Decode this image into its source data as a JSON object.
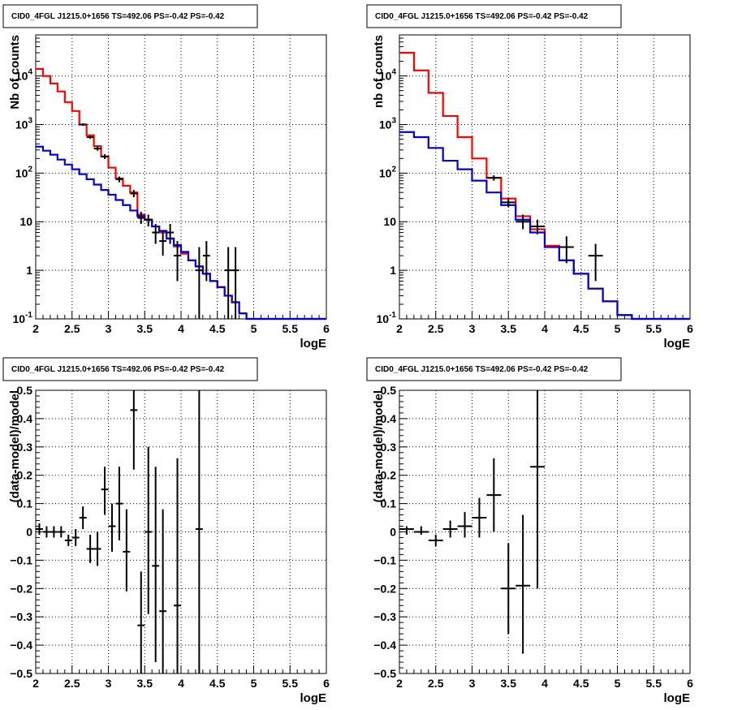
{
  "chart_data": [
    {
      "type": "line",
      "title": "CID0_4FGL J1215.0+1656 TS=492.06 PS=-0.42 PS=-0.42",
      "xlabel": "logE",
      "ylabel": "Nb of counts",
      "xlim": [
        2,
        6
      ],
      "ylim": [
        0.1,
        70000
      ],
      "yscale": "log",
      "xticks": [
        "2",
        "2.5",
        "3",
        "3.5",
        "4",
        "4.5",
        "5",
        "5.5",
        "6"
      ],
      "yticks": [
        {
          "value": 0.1,
          "label": "10⁻¹"
        },
        {
          "value": 1,
          "label": "1"
        },
        {
          "value": 10,
          "label": "10"
        },
        {
          "value": 100,
          "label": "10²"
        },
        {
          "value": 1000,
          "label": "10³"
        },
        {
          "value": 10000,
          "label": "10⁴"
        }
      ],
      "grid": true,
      "bin_edges": [
        2.0,
        2.1,
        2.2,
        2.3,
        2.4,
        2.5,
        2.6,
        2.7,
        2.8,
        2.9,
        3.0,
        3.1,
        3.2,
        3.3,
        3.4,
        3.5,
        3.6,
        3.7,
        3.8,
        3.9,
        4.0,
        4.1,
        4.2,
        4.3,
        4.4,
        4.5,
        4.6,
        4.7,
        4.8,
        4.9,
        5.0,
        5.1,
        5.2,
        5.3,
        5.4,
        5.5,
        5.6,
        5.7,
        5.8,
        5.9,
        6.0
      ],
      "series": [
        {
          "color": "#ff0000",
          "style": "step",
          "values": [
            14000,
            10000,
            7000,
            4800,
            2900,
            1900,
            1000,
            600,
            360,
            220,
            130,
            78,
            55,
            40,
            14,
            11,
            8,
            6,
            4.5,
            3.1,
            2.2,
            1.6,
            1.2,
            0.85,
            0.6,
            0.45,
            0.3,
            0.22,
            0.13,
            0.1,
            0.1,
            0.1,
            0.1,
            0.1,
            0.1,
            0.1,
            0.1,
            0.1,
            0.1,
            0.1
          ]
        },
        {
          "color": "#0000dd",
          "style": "step",
          "values": [
            350,
            290,
            240,
            190,
            150,
            120,
            95,
            75,
            58,
            45,
            36,
            28,
            22,
            17,
            13,
            11,
            8,
            6.5,
            4.5,
            3.3,
            2.4,
            1.6,
            1.2,
            0.85,
            0.6,
            0.45,
            0.3,
            0.22,
            0.13,
            0.1,
            0.1,
            0.1,
            0.1,
            0.1,
            0.1,
            0.1,
            0.1,
            0.1,
            0.1,
            0.1
          ]
        },
        {
          "color": "#000000",
          "style": "errorbar",
          "points": [
            {
              "x": 2.65,
              "y": 1000,
              "lo": 940,
              "hi": 1060
            },
            {
              "x": 2.75,
              "y": 550,
              "lo": 505,
              "hi": 595
            },
            {
              "x": 2.85,
              "y": 320,
              "lo": 290,
              "hi": 355
            },
            {
              "x": 2.95,
              "y": 220,
              "lo": 195,
              "hi": 245
            },
            {
              "x": 3.15,
              "y": 75,
              "lo": 65,
              "hi": 85
            },
            {
              "x": 3.35,
              "y": 38,
              "lo": 32,
              "hi": 45
            },
            {
              "x": 3.45,
              "y": 12,
              "lo": 9,
              "hi": 16
            },
            {
              "x": 3.55,
              "y": 11,
              "lo": 8,
              "hi": 14
            },
            {
              "x": 3.65,
              "y": 6,
              "lo": 3.5,
              "hi": 9
            },
            {
              "x": 3.75,
              "y": 4,
              "lo": 2,
              "hi": 6.5
            },
            {
              "x": 3.85,
              "y": 6,
              "lo": 3.5,
              "hi": 9
            },
            {
              "x": 3.95,
              "y": 2,
              "lo": 0.6,
              "hi": 4
            },
            {
              "x": 4.25,
              "y": 1,
              "lo": 0.1,
              "hi": 3
            },
            {
              "x": 4.35,
              "y": 2,
              "lo": 0.6,
              "hi": 4
            },
            {
              "x": 4.65,
              "y": 1,
              "lo": 0.1,
              "hi": 3
            },
            {
              "x": 4.75,
              "y": 1,
              "lo": 0.1,
              "hi": 3
            }
          ]
        }
      ]
    },
    {
      "type": "line",
      "title": "CID0_4FGL J1215.0+1656 TS=492.06 PS=-0.42 PS=-0.42",
      "xlabel": "logE",
      "ylabel": "nb of counts",
      "xlim": [
        2,
        6
      ],
      "ylim": [
        0.1,
        70000
      ],
      "yscale": "log",
      "xticks": [
        "2",
        "2.5",
        "3",
        "3.5",
        "4",
        "4.5",
        "5",
        "5.5",
        "6"
      ],
      "yticks": [
        {
          "value": 0.1,
          "label": "10⁻¹"
        },
        {
          "value": 1,
          "label": "1"
        },
        {
          "value": 10,
          "label": "10"
        },
        {
          "value": 100,
          "label": "10²"
        },
        {
          "value": 1000,
          "label": "10³"
        },
        {
          "value": 10000,
          "label": "10⁴"
        }
      ],
      "grid": true,
      "bin_edges": [
        2.0,
        2.2,
        2.4,
        2.6,
        2.8,
        3.0,
        3.2,
        3.4,
        3.6,
        3.8,
        4.0,
        4.2,
        4.4,
        4.6,
        4.8,
        5.0,
        5.2,
        5.4,
        5.6,
        5.8,
        6.0
      ],
      "series": [
        {
          "color": "#ff0000",
          "style": "step",
          "values": [
            30000,
            13000,
            4500,
            1500,
            550,
            200,
            80,
            30,
            13,
            7,
            3.2,
            1.6,
            0.85,
            0.42,
            0.23,
            0.12,
            0.1,
            0.1,
            0.1,
            0.1
          ]
        },
        {
          "color": "#0000dd",
          "style": "step",
          "values": [
            700,
            550,
            330,
            180,
            120,
            70,
            40,
            22,
            11,
            6,
            3,
            1.6,
            0.85,
            0.42,
            0.23,
            0.12,
            0.1,
            0.1,
            0.1,
            0.1
          ]
        },
        {
          "color": "#000000",
          "style": "errorbar",
          "points": [
            {
              "x": 3.3,
              "y": 80,
              "lo": 70,
              "hi": 90
            },
            {
              "x": 3.5,
              "y": 25,
              "lo": 20,
              "hi": 30
            },
            {
              "x": 3.7,
              "y": 10,
              "lo": 7,
              "hi": 14
            },
            {
              "x": 3.9,
              "y": 8,
              "lo": 5.5,
              "hi": 11
            },
            {
              "x": 4.3,
              "y": 3,
              "lo": 1.4,
              "hi": 5
            },
            {
              "x": 4.7,
              "y": 2,
              "lo": 0.6,
              "hi": 3.5
            }
          ]
        }
      ]
    },
    {
      "type": "scatter",
      "title": "CID0_4FGL J1215.0+1656 TS=492.06 PS=-0.42 PS=-0.42",
      "xlabel": "logE",
      "ylabel": "(data-model)/model",
      "xlim": [
        2,
        6
      ],
      "ylim": [
        -0.5,
        0.5
      ],
      "xticks": [
        "2",
        "2.5",
        "3",
        "3.5",
        "4",
        "4.5",
        "5",
        "5.5",
        "6"
      ],
      "yticks": [
        "−0.5",
        "−0.4",
        "−0.3",
        "−0.2",
        "−0.1",
        "0",
        "0.1",
        "0.2",
        "0.3",
        "0.4",
        "0.5"
      ],
      "grid": true,
      "xerr": 0.05,
      "series": [
        {
          "color": "#000000",
          "style": "errorbar",
          "points": [
            {
              "x": 2.05,
              "y": 0.01,
              "lo": -0.01,
              "hi": 0.03
            },
            {
              "x": 2.15,
              "y": 0.0,
              "lo": -0.02,
              "hi": 0.02
            },
            {
              "x": 2.25,
              "y": 0.0,
              "lo": -0.02,
              "hi": 0.02
            },
            {
              "x": 2.35,
              "y": 0.0,
              "lo": -0.02,
              "hi": 0.02
            },
            {
              "x": 2.45,
              "y": -0.03,
              "lo": -0.05,
              "hi": -0.01
            },
            {
              "x": 2.55,
              "y": -0.02,
              "lo": -0.05,
              "hi": 0.01
            },
            {
              "x": 2.65,
              "y": 0.05,
              "lo": 0.01,
              "hi": 0.09
            },
            {
              "x": 2.75,
              "y": -0.06,
              "lo": -0.11,
              "hi": -0.01
            },
            {
              "x": 2.85,
              "y": -0.06,
              "lo": -0.12,
              "hi": 0.0
            },
            {
              "x": 2.95,
              "y": 0.15,
              "lo": 0.06,
              "hi": 0.23
            },
            {
              "x": 3.05,
              "y": 0.02,
              "lo": -0.07,
              "hi": 0.1
            },
            {
              "x": 3.15,
              "y": 0.1,
              "lo": -0.03,
              "hi": 0.23
            },
            {
              "x": 3.25,
              "y": -0.07,
              "lo": -0.21,
              "hi": 0.08
            },
            {
              "x": 3.35,
              "y": 0.43,
              "lo": 0.22,
              "hi": 0.5
            },
            {
              "x": 3.45,
              "y": -0.33,
              "lo": -0.5,
              "hi": -0.14
            },
            {
              "x": 3.55,
              "y": 0.0,
              "lo": -0.29,
              "hi": 0.3
            },
            {
              "x": 3.65,
              "y": -0.12,
              "lo": -0.46,
              "hi": 0.23
            },
            {
              "x": 3.75,
              "y": -0.28,
              "lo": -0.5,
              "hi": 0.08
            },
            {
              "x": 3.95,
              "y": -0.26,
              "lo": -0.5,
              "hi": 0.26
            },
            {
              "x": 4.25,
              "y": 0.01,
              "lo": -0.5,
              "hi": 0.5
            }
          ]
        }
      ]
    },
    {
      "type": "scatter",
      "title": "CID0_4FGL J1215.0+1656 TS=492.06 PS=-0.42 PS=-0.42",
      "xlabel": "logE",
      "ylabel": "(data-model)/model",
      "xlim": [
        2,
        6
      ],
      "ylim": [
        -0.5,
        0.5
      ],
      "xticks": [
        "2",
        "2.5",
        "3",
        "3.5",
        "4",
        "4.5",
        "5",
        "5.5",
        "6"
      ],
      "yticks": [
        "−0.5",
        "−0.4",
        "−0.3",
        "−0.2",
        "−0.1",
        "0",
        "0.1",
        "0.2",
        "0.3",
        "0.4",
        "0.5"
      ],
      "grid": true,
      "xerr": 0.1,
      "series": [
        {
          "color": "#000000",
          "style": "errorbar",
          "points": [
            {
              "x": 2.1,
              "y": 0.01,
              "lo": -0.01,
              "hi": 0.02
            },
            {
              "x": 2.3,
              "y": 0.0,
              "lo": -0.01,
              "hi": 0.02
            },
            {
              "x": 2.5,
              "y": -0.03,
              "lo": -0.05,
              "hi": -0.01
            },
            {
              "x": 2.7,
              "y": 0.01,
              "lo": -0.02,
              "hi": 0.04
            },
            {
              "x": 2.9,
              "y": 0.02,
              "lo": -0.02,
              "hi": 0.07
            },
            {
              "x": 3.1,
              "y": 0.05,
              "lo": -0.02,
              "hi": 0.12
            },
            {
              "x": 3.3,
              "y": 0.13,
              "lo": 0.0,
              "hi": 0.26
            },
            {
              "x": 3.5,
              "y": -0.2,
              "lo": -0.36,
              "hi": -0.04
            },
            {
              "x": 3.7,
              "y": -0.19,
              "lo": -0.43,
              "hi": 0.06
            },
            {
              "x": 3.9,
              "y": 0.23,
              "lo": -0.2,
              "hi": 0.5
            }
          ]
        }
      ]
    }
  ]
}
